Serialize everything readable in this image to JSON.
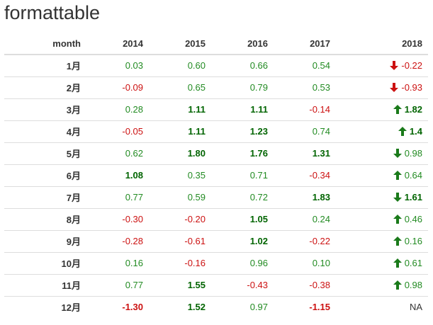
{
  "title": "formattable",
  "headers": [
    "month",
    "2014",
    "2015",
    "2016",
    "2017",
    "2018"
  ],
  "colors": {
    "positive": "#228b22",
    "positive_strong": "#006400",
    "negative": "#cc1111",
    "arrow_up": "#1a7a1a",
    "arrow_down_red": "#cc1111",
    "arrow_down_green": "#1a7a1a"
  },
  "rows": [
    {
      "month": "1月",
      "cells": [
        {
          "v": "0.03",
          "s": "pos"
        },
        {
          "v": "0.60",
          "s": "pos"
        },
        {
          "v": "0.66",
          "s": "pos"
        },
        {
          "v": "0.54",
          "s": "pos"
        }
      ],
      "y2018": {
        "v": "-0.22",
        "s": "neg",
        "arrow": "down-red-icon"
      }
    },
    {
      "month": "2月",
      "cells": [
        {
          "v": "-0.09",
          "s": "neg"
        },
        {
          "v": "0.65",
          "s": "pos"
        },
        {
          "v": "0.79",
          "s": "pos"
        },
        {
          "v": "0.53",
          "s": "pos"
        }
      ],
      "y2018": {
        "v": "-0.93",
        "s": "neg",
        "arrow": "down-red-icon"
      }
    },
    {
      "month": "3月",
      "cells": [
        {
          "v": "0.28",
          "s": "pos"
        },
        {
          "v": "1.11",
          "s": "pos bold"
        },
        {
          "v": "1.11",
          "s": "pos bold"
        },
        {
          "v": "-0.14",
          "s": "neg"
        }
      ],
      "y2018": {
        "v": "1.82",
        "s": "pos bold",
        "arrow": "up-green-icon"
      }
    },
    {
      "month": "4月",
      "cells": [
        {
          "v": "-0.05",
          "s": "neg"
        },
        {
          "v": "1.11",
          "s": "pos bold"
        },
        {
          "v": "1.23",
          "s": "pos bold"
        },
        {
          "v": "0.74",
          "s": "pos"
        }
      ],
      "y2018": {
        "v": "1.4",
        "s": "pos bold",
        "arrow": "up-green-icon"
      }
    },
    {
      "month": "5月",
      "cells": [
        {
          "v": "0.62",
          "s": "pos"
        },
        {
          "v": "1.80",
          "s": "pos bold"
        },
        {
          "v": "1.76",
          "s": "pos bold"
        },
        {
          "v": "1.31",
          "s": "pos bold"
        }
      ],
      "y2018": {
        "v": "0.98",
        "s": "pos",
        "arrow": "down-green-icon"
      }
    },
    {
      "month": "6月",
      "cells": [
        {
          "v": "1.08",
          "s": "pos bold"
        },
        {
          "v": "0.35",
          "s": "pos"
        },
        {
          "v": "0.71",
          "s": "pos"
        },
        {
          "v": "-0.34",
          "s": "neg"
        }
      ],
      "y2018": {
        "v": "0.64",
        "s": "pos",
        "arrow": "up-green-icon"
      }
    },
    {
      "month": "7月",
      "cells": [
        {
          "v": "0.77",
          "s": "pos"
        },
        {
          "v": "0.59",
          "s": "pos"
        },
        {
          "v": "0.72",
          "s": "pos"
        },
        {
          "v": "1.83",
          "s": "pos bold"
        }
      ],
      "y2018": {
        "v": "1.61",
        "s": "pos bold",
        "arrow": "down-green-icon"
      }
    },
    {
      "month": "8月",
      "cells": [
        {
          "v": "-0.30",
          "s": "neg"
        },
        {
          "v": "-0.20",
          "s": "neg"
        },
        {
          "v": "1.05",
          "s": "pos bold"
        },
        {
          "v": "0.24",
          "s": "pos"
        }
      ],
      "y2018": {
        "v": "0.46",
        "s": "pos",
        "arrow": "up-green-icon"
      }
    },
    {
      "month": "9月",
      "cells": [
        {
          "v": "-0.28",
          "s": "neg"
        },
        {
          "v": "-0.61",
          "s": "neg"
        },
        {
          "v": "1.02",
          "s": "pos bold"
        },
        {
          "v": "-0.22",
          "s": "neg"
        }
      ],
      "y2018": {
        "v": "0.16",
        "s": "pos",
        "arrow": "up-green-icon"
      }
    },
    {
      "month": "10月",
      "cells": [
        {
          "v": "0.16",
          "s": "pos"
        },
        {
          "v": "-0.16",
          "s": "neg"
        },
        {
          "v": "0.96",
          "s": "pos"
        },
        {
          "v": "0.10",
          "s": "pos"
        }
      ],
      "y2018": {
        "v": "0.61",
        "s": "pos",
        "arrow": "up-green-icon"
      }
    },
    {
      "month": "11月",
      "cells": [
        {
          "v": "0.77",
          "s": "pos"
        },
        {
          "v": "1.55",
          "s": "pos bold"
        },
        {
          "v": "-0.43",
          "s": "neg"
        },
        {
          "v": "-0.38",
          "s": "neg"
        }
      ],
      "y2018": {
        "v": "0.98",
        "s": "pos",
        "arrow": "up-green-icon"
      }
    },
    {
      "month": "12月",
      "cells": [
        {
          "v": "-1.30",
          "s": "neg bold"
        },
        {
          "v": "1.52",
          "s": "pos bold"
        },
        {
          "v": "0.97",
          "s": "pos"
        },
        {
          "v": "-1.15",
          "s": "neg bold"
        }
      ],
      "y2018": {
        "v": "NA",
        "s": "na",
        "arrow": ""
      }
    }
  ]
}
